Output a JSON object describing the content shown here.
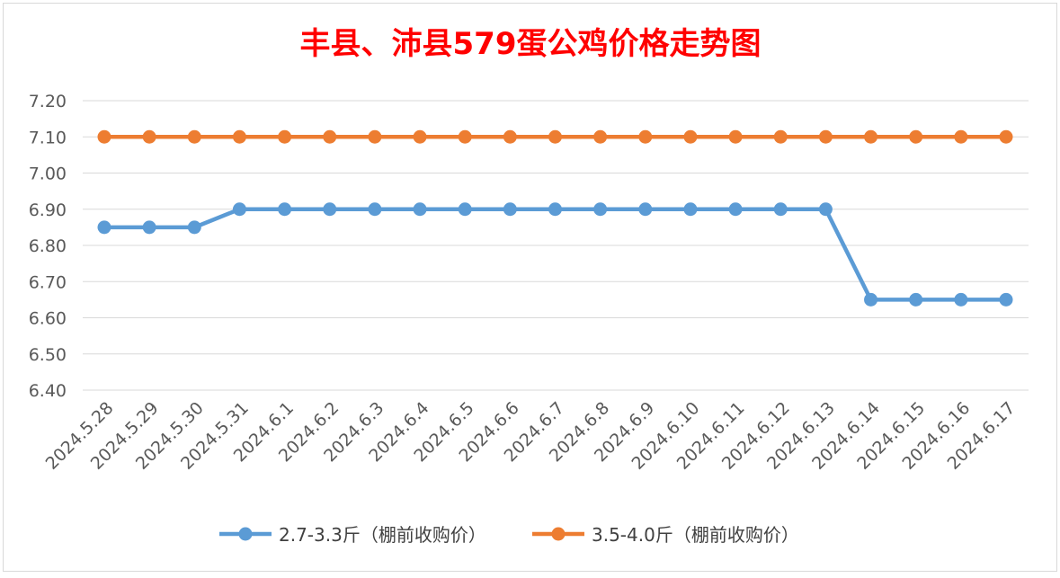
{
  "chart_data": {
    "type": "line",
    "title": "丰县、沛县579蛋公鸡价格走势图",
    "title_color": "#FF0000",
    "xlabel": "",
    "ylabel": "",
    "categories": [
      "2024.5.28",
      "2024.5.29",
      "2024.5.30",
      "2024.5.31",
      "2024.6.1",
      "2024.6.2",
      "2024.6.3",
      "2024.6.4",
      "2024.6.5",
      "2024.6.6",
      "2024.6.7",
      "2024.6.8",
      "2024.6.9",
      "2024.6.10",
      "2024.6.11",
      "2024.6.12",
      "2024.6.13",
      "2024.6.14",
      "2024.6.15",
      "2024.6.16",
      "2024.6.17"
    ],
    "ylim": [
      6.4,
      7.2
    ],
    "yticks": [
      "6.40",
      "6.50",
      "6.60",
      "6.70",
      "6.80",
      "6.90",
      "7.00",
      "7.10",
      "7.20"
    ],
    "grid": true,
    "legend_position": "bottom",
    "series": [
      {
        "name": "2.7-3.3斤（棚前收购价）",
        "color": "#5B9BD5",
        "values": [
          6.85,
          6.85,
          6.85,
          6.9,
          6.9,
          6.9,
          6.9,
          6.9,
          6.9,
          6.9,
          6.9,
          6.9,
          6.9,
          6.9,
          6.9,
          6.9,
          6.9,
          6.65,
          6.65,
          6.65,
          6.65
        ]
      },
      {
        "name": "3.5-4.0斤（棚前收购价）",
        "color": "#ED7D31",
        "values": [
          7.1,
          7.1,
          7.1,
          7.1,
          7.1,
          7.1,
          7.1,
          7.1,
          7.1,
          7.1,
          7.1,
          7.1,
          7.1,
          7.1,
          7.1,
          7.1,
          7.1,
          7.1,
          7.1,
          7.1,
          7.1
        ]
      }
    ]
  }
}
